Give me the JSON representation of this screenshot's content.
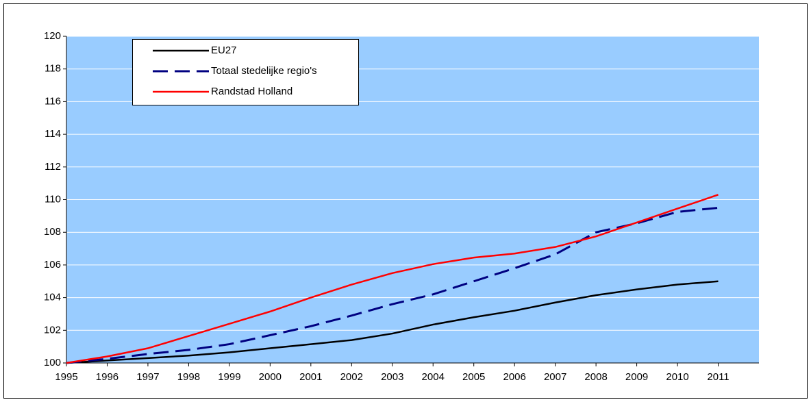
{
  "chart_data": {
    "type": "line",
    "x": [
      1995,
      1996,
      1997,
      1998,
      1999,
      2000,
      2001,
      2002,
      2003,
      2004,
      2005,
      2006,
      2007,
      2008,
      2009,
      2010,
      2011
    ],
    "series": [
      {
        "name": "EU27",
        "color": "#000000",
        "dash": false,
        "values": [
          100,
          100.15,
          100.3,
          100.45,
          100.65,
          100.9,
          101.15,
          101.4,
          101.8,
          102.35,
          102.8,
          103.2,
          103.7,
          104.15,
          104.5,
          104.8,
          105.0
        ]
      },
      {
        "name": "Totaal stedelijke regio's",
        "color": "#000080",
        "dash": true,
        "values": [
          100,
          100.25,
          100.55,
          100.8,
          101.15,
          101.7,
          102.25,
          102.9,
          103.6,
          104.2,
          105.0,
          105.8,
          106.65,
          108.0,
          108.55,
          109.25,
          109.5
        ]
      },
      {
        "name": "Randstad Holland",
        "color": "#ff0000",
        "dash": false,
        "values": [
          100,
          100.4,
          100.9,
          101.65,
          102.4,
          103.15,
          104.0,
          104.8,
          105.5,
          106.05,
          106.45,
          106.7,
          107.1,
          107.75,
          108.6,
          109.45,
          110.3
        ]
      }
    ],
    "xlim": [
      1995,
      2012
    ],
    "xticks": [
      1995,
      1996,
      1997,
      1998,
      1999,
      2000,
      2001,
      2002,
      2003,
      2004,
      2005,
      2006,
      2007,
      2008,
      2009,
      2010,
      2011
    ],
    "ylim": [
      100,
      120
    ],
    "yticks": [
      100,
      102,
      104,
      106,
      108,
      110,
      112,
      114,
      116,
      118,
      120
    ],
    "grid": true,
    "legend": "top-left"
  }
}
